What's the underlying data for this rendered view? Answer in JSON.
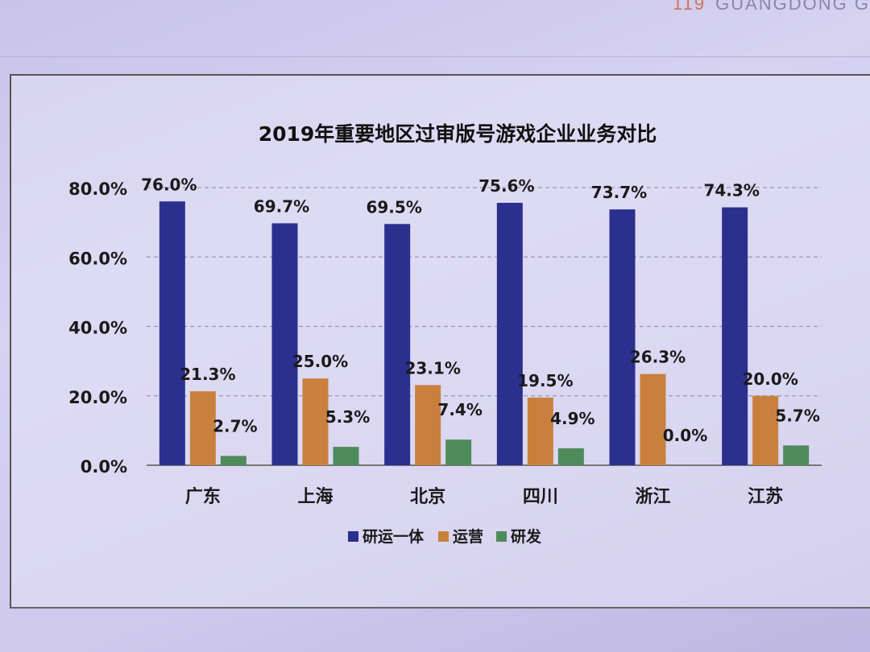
{
  "header": {
    "page_number": "119",
    "publication": "GUANGDONG G"
  },
  "chart_data": {
    "type": "bar",
    "title": "2019年重要地区过审版号游戏企业业务对比",
    "categories": [
      "广东",
      "上海",
      "北京",
      "四川",
      "浙江",
      "江苏"
    ],
    "series": [
      {
        "name": "研运一体",
        "color": "#2b2f8e",
        "values": [
          76.0,
          69.7,
          69.5,
          75.6,
          73.7,
          74.3
        ],
        "labels": [
          "76.0%",
          "69.7%",
          "69.5%",
          "75.6%",
          "73.7%",
          "74.3%"
        ]
      },
      {
        "name": "运营",
        "color": "#c9803d",
        "values": [
          21.3,
          25.0,
          23.1,
          19.5,
          26.3,
          20.0
        ],
        "labels": [
          "21.3%",
          "25.0%",
          "23.1%",
          "19.5%",
          "26.3%",
          "20.0%"
        ]
      },
      {
        "name": "研发",
        "color": "#4f8a5b",
        "values": [
          2.7,
          5.3,
          7.4,
          4.9,
          0.0,
          5.7
        ],
        "labels": [
          "2.7%",
          "5.3%",
          "7.4%",
          "4.9%",
          "0.0%",
          "5.7%"
        ]
      }
    ],
    "y_ticks": [
      0,
      20,
      40,
      60,
      80
    ],
    "y_tick_labels": [
      "0.0%",
      "20.0%",
      "40.0%",
      "60.0%",
      "80.0%"
    ],
    "ylim": [
      0,
      80
    ],
    "xlabel": "",
    "ylabel": "",
    "grid": true,
    "legend_position": "bottom"
  }
}
